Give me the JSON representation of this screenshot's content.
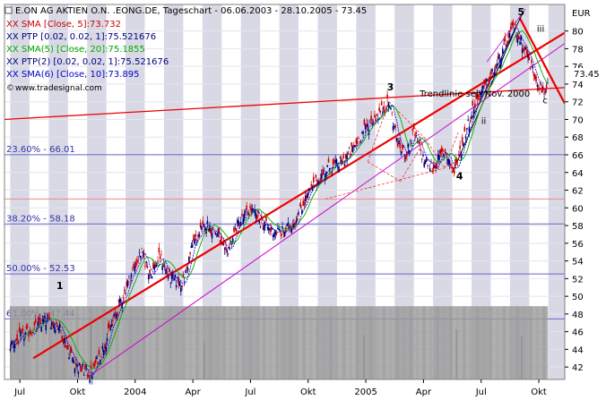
{
  "chart_data": {
    "type": "candlestick",
    "header": "E.ON AG AKTIEN O.N. .EONG.DE, Tageschart - 06.06.2003 - 28.10.2005 - 73.45",
    "indicators": [
      {
        "label": "XX SMA [Close, 5]:73.732",
        "color": "#cc0000"
      },
      {
        "label": "XX PTP [0.02, 0.02, 1]:75.521676",
        "color": "#000080"
      },
      {
        "label": "XX SMA(5) [Close, 20]:75.1855",
        "color": "#00aa00"
      },
      {
        "label": "XX PTP(2) [0.02, 0.02, 1]:75.521676",
        "color": "#000080"
      },
      {
        "label": "XX SMA(6) [Close, 10]:73.895",
        "color": "#0000cc"
      }
    ],
    "watermark": "www.tradesignal.com",
    "currency": "EUR",
    "last_price": "73.45",
    "ylim": [
      40.6,
      83.0
    ],
    "y_ticks": [
      42,
      44,
      46,
      48,
      50,
      52,
      54,
      56,
      58,
      60,
      62,
      64,
      66,
      68,
      70,
      72,
      74,
      76,
      78,
      80
    ],
    "x_ticks": [
      {
        "label": "Jul",
        "pos": 0.5
      },
      {
        "label": "Okt",
        "pos": 3.5
      },
      {
        "label": "2004",
        "pos": 6.5
      },
      {
        "label": "Apr",
        "pos": 9.5
      },
      {
        "label": "Jul",
        "pos": 12.5
      },
      {
        "label": "Okt",
        "pos": 15.5
      },
      {
        "label": "2005",
        "pos": 18.5
      },
      {
        "label": "Apr",
        "pos": 21.5
      },
      {
        "label": "Jul",
        "pos": 24.5
      },
      {
        "label": "Okt",
        "pos": 27.5
      }
    ],
    "x_range": [
      -0.3,
      28.85
    ],
    "fibonacci_levels": [
      {
        "label": "23.60% - 66.01",
        "value": 66.01
      },
      {
        "label": "38.20% - 58.18",
        "value": 58.18
      },
      {
        "label": "50.00% - 52.53",
        "value": 52.53
      },
      {
        "label": "61.80% - 47.44",
        "value": 47.44
      }
    ],
    "annotations": [
      {
        "text": "1",
        "t": 2.4,
        "v": 50.8
      },
      {
        "text": "3",
        "t": 19.6,
        "v": 73.3
      },
      {
        "text": "4",
        "t": 23.2,
        "v": 63.2
      },
      {
        "text": "5",
        "t": 26.4,
        "v": 81.8
      },
      {
        "text": "Trendlinie seit Nov. 2000",
        "t": 21.3,
        "v": 72.6
      },
      {
        "text": "ii",
        "t": 24.5,
        "v": 69.5
      },
      {
        "text": "iii",
        "t": 27.4,
        "v": 79.9
      },
      {
        "text": "c",
        "t": 27.7,
        "v": 71.8
      }
    ],
    "price_path": [
      [
        0,
        44.5
      ],
      [
        1,
        46.0
      ],
      [
        1.8,
        47.2
      ],
      [
        2.5,
        46.8
      ],
      [
        3.0,
        44.0
      ],
      [
        3.5,
        42.0
      ],
      [
        4.2,
        41.2
      ],
      [
        4.8,
        44.0
      ],
      [
        5.5,
        48.0
      ],
      [
        6.2,
        52.0
      ],
      [
        6.8,
        55.0
      ],
      [
        7.3,
        52.5
      ],
      [
        7.8,
        54.5
      ],
      [
        8.3,
        52.0
      ],
      [
        9.0,
        51.5
      ],
      [
        9.5,
        56.0
      ],
      [
        10.2,
        58.2
      ],
      [
        10.8,
        57.0
      ],
      [
        11.2,
        54.5
      ],
      [
        11.8,
        58.0
      ],
      [
        12.5,
        59.8
      ],
      [
        13.0,
        58.5
      ],
      [
        13.5,
        57.5
      ],
      [
        14.2,
        57.2
      ],
      [
        14.8,
        58.5
      ],
      [
        15.3,
        60.8
      ],
      [
        15.8,
        62.5
      ],
      [
        16.5,
        64.5
      ],
      [
        17.2,
        65.0
      ],
      [
        17.8,
        66.5
      ],
      [
        18.3,
        68.5
      ],
      [
        18.8,
        69.8
      ],
      [
        19.3,
        71.0
      ],
      [
        19.7,
        72.0
      ],
      [
        20.2,
        67.0
      ],
      [
        20.6,
        66.0
      ],
      [
        21.0,
        68.5
      ],
      [
        21.5,
        65.5
      ],
      [
        22.0,
        64.5
      ],
      [
        22.6,
        66.5
      ],
      [
        23.1,
        64.0
      ],
      [
        23.6,
        68.0
      ],
      [
        24.2,
        72.0
      ],
      [
        24.8,
        74.0
      ],
      [
        25.3,
        76.0
      ],
      [
        25.8,
        78.5
      ],
      [
        26.2,
        80.5
      ],
      [
        26.4,
        79.5
      ],
      [
        26.8,
        78.0
      ],
      [
        27.1,
        76.0
      ],
      [
        27.4,
        74.5
      ],
      [
        27.7,
        73.2
      ],
      [
        28.0,
        73.5
      ]
    ],
    "volume_path": [
      [
        0,
        0.22
      ],
      [
        2,
        0.28
      ],
      [
        4,
        0.6
      ],
      [
        6,
        0.4
      ],
      [
        8,
        0.3
      ],
      [
        10,
        0.35
      ],
      [
        12,
        0.3
      ],
      [
        14,
        0.45
      ],
      [
        16,
        0.3
      ],
      [
        18,
        0.4
      ],
      [
        20,
        0.45
      ],
      [
        22,
        0.4
      ],
      [
        24,
        0.4
      ],
      [
        26,
        0.45
      ],
      [
        28,
        0.35
      ]
    ],
    "channel_lines": [
      {
        "from": [
          1.2,
          43.0
        ],
        "to": [
          28.85,
          79.8
        ],
        "color": "#ee0000",
        "width": 2.2
      },
      {
        "from": [
          -0.3,
          70.0
        ],
        "to": [
          28.85,
          73.6
        ],
        "color": "#ee0000",
        "width": 1.3
      },
      {
        "from": [
          4.0,
          40.8
        ],
        "to": [
          28.85,
          78.6
        ],
        "color": "#cc00cc",
        "width": 1.0
      },
      {
        "from": [
          26.5,
          81.5
        ],
        "to": [
          28.85,
          71.8
        ],
        "color": "#ee0000",
        "width": 2.2
      },
      {
        "from": [
          23.0,
          64.0
        ],
        "to": [
          26.3,
          80.3
        ],
        "color": "#000000",
        "width": 0.9
      },
      {
        "from": [
          24.0,
          70.0
        ],
        "to": [
          26.7,
          82.2
        ],
        "color": "#000000",
        "width": 0.9
      },
      {
        "from": [
          24.8,
          76.5
        ],
        "to": [
          26.8,
          82.5
        ],
        "color": "#cc00cc",
        "width": 0.8
      }
    ],
    "dashed_lines": [
      {
        "from": [
          16.4,
          61.0
        ],
        "to": [
          22.6,
          64.5
        ]
      },
      {
        "from": [
          18.6,
          65.2
        ],
        "to": [
          19.7,
          72.0
        ]
      },
      {
        "from": [
          19.7,
          72.0
        ],
        "to": [
          21.6,
          67.8
        ]
      },
      {
        "from": [
          21.6,
          67.8
        ],
        "to": [
          22.6,
          64.5
        ]
      },
      {
        "from": [
          22.6,
          64.5
        ],
        "to": [
          23.3,
          68.5
        ]
      },
      {
        "from": [
          18.6,
          65.2
        ],
        "to": [
          20.3,
          63.0
        ]
      },
      {
        "from": [
          20.3,
          63.0
        ],
        "to": [
          21.6,
          67.8
        ]
      }
    ]
  }
}
